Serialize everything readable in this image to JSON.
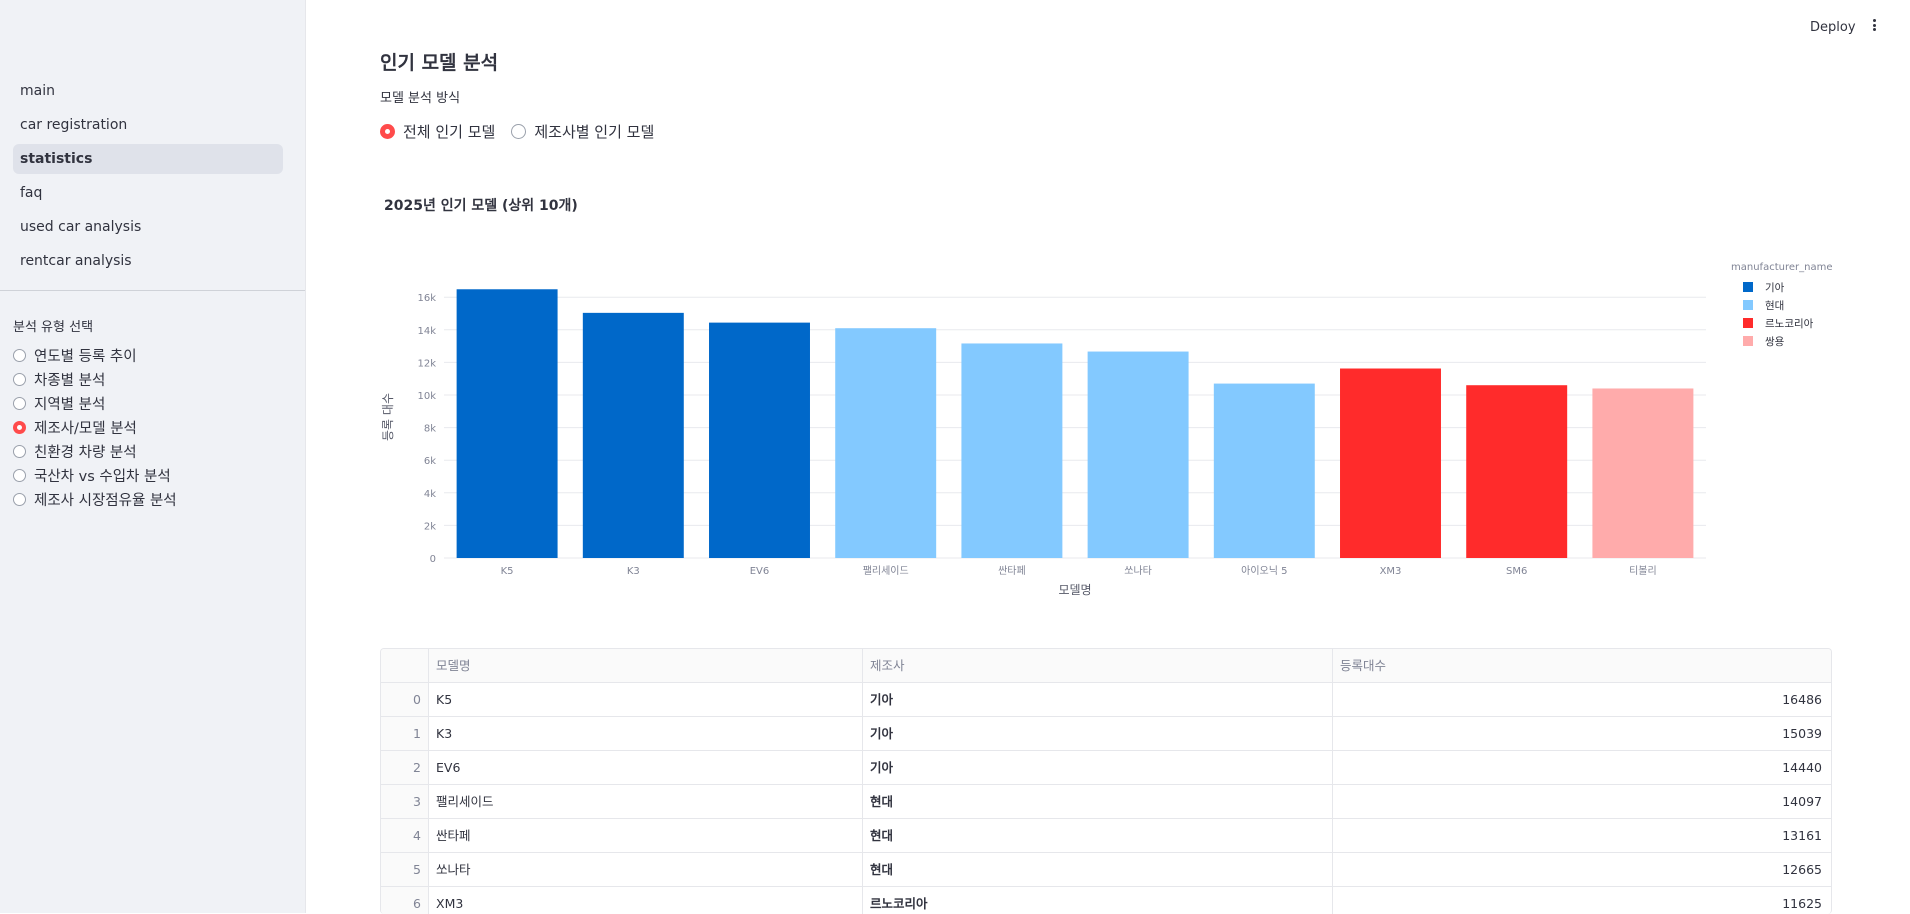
{
  "sidebar": {
    "nav": [
      "main",
      "car registration",
      "statistics",
      "faq",
      "used car analysis",
      "rentcar analysis"
    ],
    "active_nav": "statistics",
    "section_label": "분석 유형 선택",
    "options": [
      "연도별 등록 추이",
      "차종별 분석",
      "지역별 분석",
      "제조사/모델 분석",
      "친환경 차량 분석",
      "국산차 vs 수입차 분석",
      "제조사 시장점유율 분석"
    ],
    "selected_option": "제조사/모델 분석"
  },
  "topbar": {
    "deploy_label": "Deploy",
    "menu_icon": "vertical-dots-icon"
  },
  "main": {
    "title": "인기 모델 분석",
    "mode_label": "모델 분석 방식",
    "modes": [
      "전체 인기 모델",
      "제조사별 인기 모델"
    ],
    "selected_mode": "전체 인기 모델"
  },
  "chart_data": {
    "type": "bar",
    "title": "2025년 인기 모델 (상위 10개)",
    "xlabel": "모델명",
    "ylabel": "등록 대수",
    "categories": [
      "K5",
      "K3",
      "EV6",
      "팰리세이드",
      "싼타페",
      "쏘나타",
      "아이오닉 5",
      "XM3",
      "SM6",
      "티볼리"
    ],
    "values": [
      16486,
      15039,
      14440,
      14097,
      13161,
      12665,
      10700,
      11625,
      10600,
      10400
    ],
    "manufacturer": [
      "기아",
      "기아",
      "기아",
      "현대",
      "현대",
      "현대",
      "현대",
      "르노코리아",
      "르노코리아",
      "쌍용"
    ],
    "ylim": [
      0,
      17300
    ],
    "yticks": [
      0,
      2000,
      4000,
      6000,
      8000,
      10000,
      12000,
      14000,
      16000
    ],
    "ytick_labels": [
      "0",
      "2k",
      "4k",
      "6k",
      "8k",
      "10k",
      "12k",
      "14k",
      "16k"
    ],
    "grid": true,
    "legend": {
      "title": "manufacturer_name",
      "placement": "right",
      "entries": [
        {
          "name": "기아",
          "color": "#0068c9"
        },
        {
          "name": "현대",
          "color": "#83c9ff"
        },
        {
          "name": "르노코리아",
          "color": "#ff2b2b"
        },
        {
          "name": "쌍용",
          "color": "#ffabab"
        }
      ]
    }
  },
  "table": {
    "columns": [
      "모델명",
      "제조사",
      "등록대수"
    ],
    "rows": [
      [
        "0",
        "K5",
        "기아",
        "16486"
      ],
      [
        "1",
        "K3",
        "기아",
        "15039"
      ],
      [
        "2",
        "EV6",
        "기아",
        "14440"
      ],
      [
        "3",
        "팰리세이드",
        "현대",
        "14097"
      ],
      [
        "4",
        "싼타페",
        "현대",
        "13161"
      ],
      [
        "5",
        "쏘나타",
        "현대",
        "12665"
      ],
      [
        "6",
        "XM3",
        "르노코리아",
        "11625"
      ]
    ]
  }
}
